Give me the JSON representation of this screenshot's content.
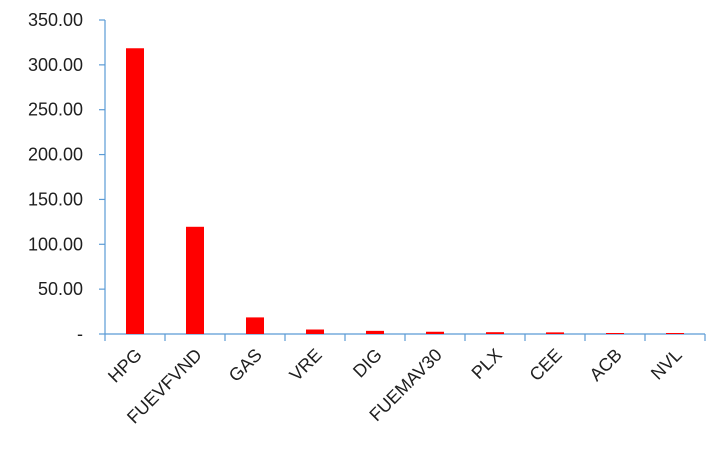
{
  "chart_data": {
    "type": "bar",
    "title": "",
    "xlabel": "",
    "ylabel": "",
    "categories": [
      "HPG",
      "FUEVFVND",
      "GAS",
      "VRE",
      "DIG",
      "FUEMAV30",
      "PLX",
      "CEE",
      "ACB",
      "NVL"
    ],
    "values": [
      318.5,
      119.5,
      18.5,
      5.0,
      3.5,
      2.5,
      2.0,
      1.8,
      0.8,
      0.6
    ],
    "ylim": [
      0,
      350
    ],
    "yticks": [
      0,
      50,
      100,
      150,
      200,
      250,
      300,
      350
    ],
    "ytick_labels": [
      "-",
      "50.00",
      "100.00",
      "150.00",
      "200.00",
      "250.00",
      "300.00",
      "350.00"
    ],
    "bar_color": "#ff0000",
    "axis_color": "#5b9bd5",
    "grid": false,
    "legend": "none"
  }
}
